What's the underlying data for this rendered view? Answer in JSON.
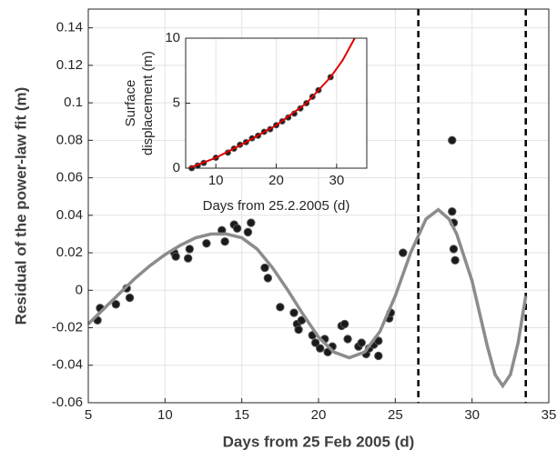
{
  "chart_data": [
    {
      "type": "scatter",
      "xlabel": "Days from 25 Feb 2005 (d)",
      "ylabel": "Residual of the power-law fit (m)",
      "xlim": [
        5,
        35
      ],
      "ylim": [
        -0.06,
        0.15
      ],
      "xticks": [
        5,
        10,
        15,
        20,
        25,
        30,
        35
      ],
      "yticks": [
        -0.06,
        -0.04,
        -0.02,
        0,
        0.02,
        0.04,
        0.06,
        0.08,
        0.1,
        0.12,
        0.14
      ],
      "grid": true,
      "series": [
        {
          "type": "scatter",
          "color": "#1a1a1a",
          "x": [
            5.6,
            5.77,
            6.8,
            7.5,
            7.7,
            10.6,
            10.7,
            11.5,
            11.6,
            12.7,
            13.7,
            13.9,
            14.5,
            14.7,
            15.4,
            15.6,
            16.5,
            16.7,
            17.5,
            18.4,
            18.6,
            18.7,
            18.9,
            19.6,
            19.8,
            20.1,
            20.4,
            20.6,
            20.9,
            21.5,
            21.7,
            21.9,
            22.6,
            22.8,
            23.1,
            23.3,
            23.6,
            23.9,
            23.9,
            24.6,
            24.7,
            25.5,
            28.7,
            28.7,
            28.8,
            28.8,
            28.9
          ],
          "values": [
            -0.016,
            -0.0095,
            -0.0075,
            0.001,
            -0.004,
            0.02,
            0.018,
            0.017,
            0.022,
            0.025,
            0.032,
            0.026,
            0.035,
            0.033,
            0.031,
            0.036,
            0.012,
            0.0065,
            -0.009,
            -0.012,
            -0.018,
            -0.021,
            -0.016,
            -0.024,
            -0.028,
            -0.031,
            -0.026,
            -0.033,
            -0.03,
            -0.019,
            -0.018,
            -0.026,
            -0.03,
            -0.028,
            -0.034,
            -0.031,
            -0.029,
            -0.035,
            -0.027,
            -0.015,
            -0.012,
            0.02,
            0.08,
            0.042,
            0.036,
            0.022,
            0.016
          ]
        },
        {
          "type": "line",
          "color": "#8c8c8c",
          "x": [
            5,
            6,
            7,
            8,
            9,
            10,
            11,
            12,
            13,
            14,
            15,
            16,
            17,
            18,
            19,
            20,
            21,
            22,
            23,
            24,
            25,
            26,
            27,
            27.8,
            28.5,
            29,
            30,
            31,
            31.5,
            32,
            32.5,
            33,
            33.5
          ],
          "values": [
            -0.018,
            -0.01,
            -0.002,
            0.006,
            0.013,
            0.019,
            0.024,
            0.028,
            0.03,
            0.03,
            0.028,
            0.022,
            0.012,
            0,
            -0.013,
            -0.025,
            -0.033,
            -0.036,
            -0.033,
            -0.022,
            -0.003,
            0.02,
            0.038,
            0.043,
            0.038,
            0.03,
            0.005,
            -0.03,
            -0.045,
            -0.051,
            -0.045,
            -0.028,
            -0.003
          ]
        }
      ],
      "vlines": [
        26.5,
        33.5
      ]
    },
    {
      "type": "scatter",
      "xlabel": "Days from 25.2.2005 (d)",
      "ylabel": [
        "Surface",
        "displacement (m)"
      ],
      "xlim": [
        5,
        35
      ],
      "ylim": [
        0,
        10
      ],
      "xticks": [
        10,
        20,
        30
      ],
      "yticks": [
        0,
        5,
        10
      ],
      "grid": true,
      "series": [
        {
          "type": "scatter",
          "color": "#1a1a1a",
          "x": [
            6,
            7,
            8,
            10,
            12,
            13,
            14,
            15,
            16,
            17,
            18,
            19,
            20,
            21,
            22,
            23,
            24,
            25,
            26,
            27,
            29
          ],
          "values": [
            0,
            0.2,
            0.4,
            0.8,
            1.2,
            1.5,
            1.8,
            2,
            2.3,
            2.5,
            2.8,
            3,
            3.3,
            3.6,
            3.9,
            4.2,
            4.6,
            5,
            5.5,
            6,
            7
          ]
        },
        {
          "type": "line",
          "color": "#e00000",
          "x": [
            5.5,
            10,
            15,
            20,
            25,
            29,
            31,
            33
          ],
          "values": [
            0,
            0.8,
            2,
            3.3,
            5,
            7,
            8.3,
            10
          ]
        }
      ]
    }
  ]
}
